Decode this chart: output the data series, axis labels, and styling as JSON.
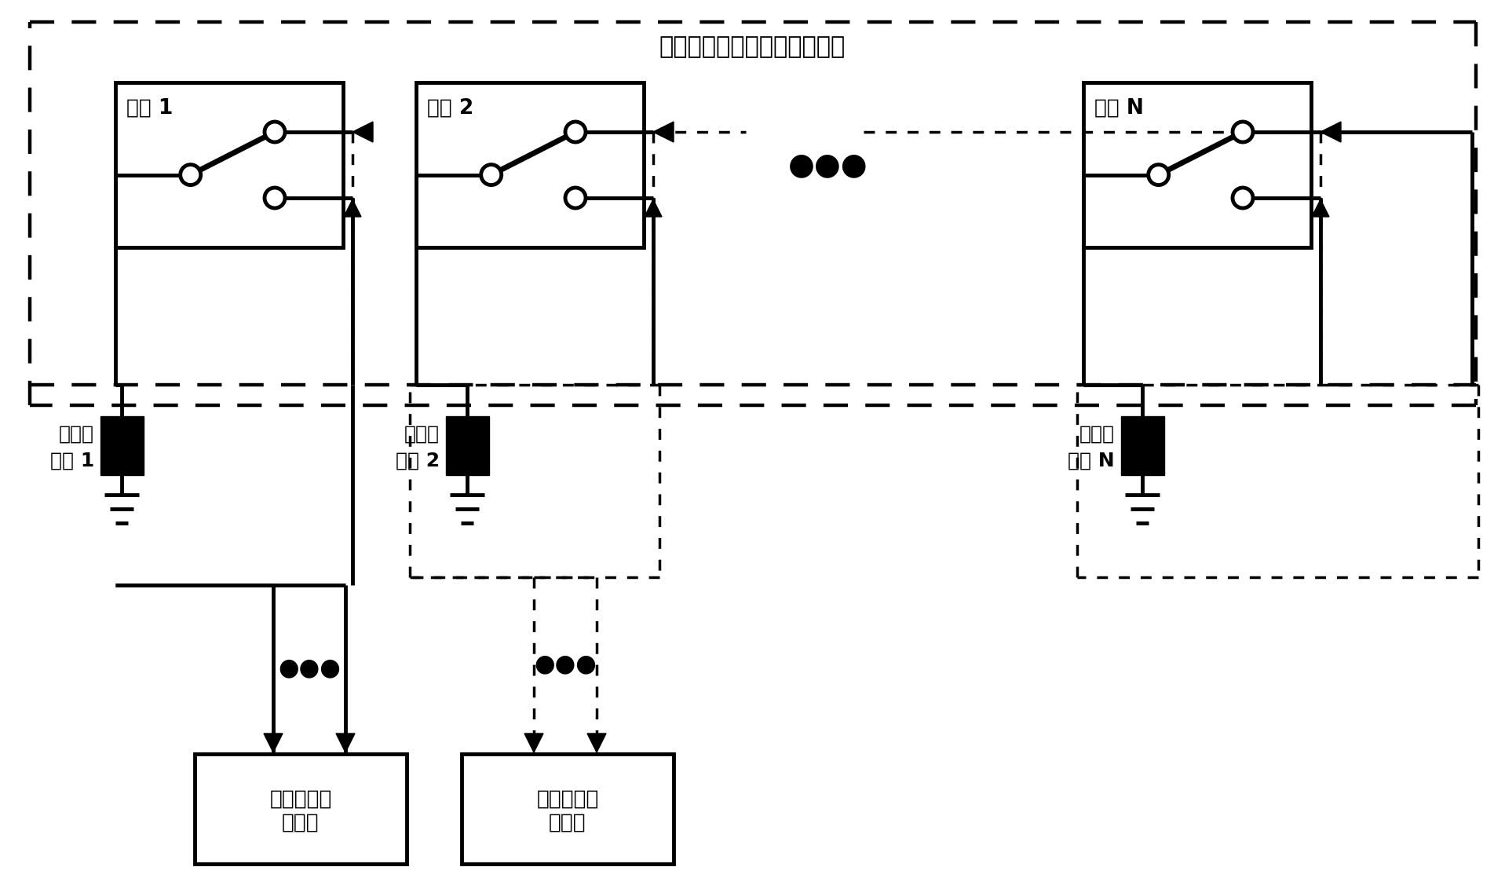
{
  "title": "主被动工作方式切换开关阵列",
  "sw1_label": "开关 1",
  "sw2_label": "开关 2",
  "swN_label": "开关 N",
  "sen1_label_l1": "压电传",
  "sen1_label_l2": "感器 1",
  "sen2_label_l1": "压电传",
  "sen2_label_l2": "感器 2",
  "senN_label_l1": "压电传",
  "senN_label_l2": "感器 N",
  "passive_l1": "被动切换开",
  "passive_l2": "关阵列",
  "active_l1": "主动切换开",
  "active_l2": "关阵列",
  "dots": "●●●",
  "bg_color": "#ffffff"
}
